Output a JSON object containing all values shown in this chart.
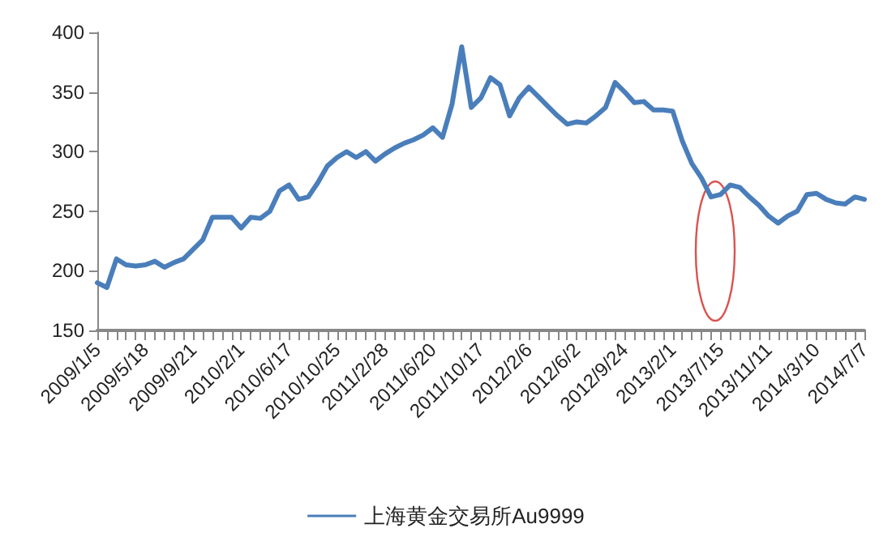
{
  "chart_data": {
    "type": "line",
    "categories": [
      "2009/1/5",
      null,
      null,
      null,
      null,
      "2009/5/18",
      null,
      null,
      null,
      null,
      "2009/9/21",
      null,
      null,
      null,
      null,
      "2010/2/1",
      null,
      null,
      null,
      null,
      "2010/6/17",
      null,
      null,
      null,
      null,
      "2010/10/25",
      null,
      null,
      null,
      null,
      "2011/2/28",
      null,
      null,
      null,
      null,
      "2011/6/20",
      null,
      null,
      null,
      null,
      "2011/10/17",
      null,
      null,
      null,
      null,
      "2012/2/6",
      null,
      null,
      null,
      null,
      "2012/6/2",
      null,
      null,
      null,
      null,
      "2012/9/24",
      null,
      null,
      null,
      null,
      "2013/2/1",
      null,
      null,
      null,
      null,
      "2013/7/15",
      null,
      null,
      null,
      null,
      "2013/11/11",
      null,
      null,
      null,
      null,
      "2014/3/10",
      null,
      null,
      null,
      null,
      "2014/7/7"
    ],
    "series": [
      {
        "name": "上海黄金交易所Au9999",
        "color": "#4a7ebb",
        "values": [
          190,
          186,
          210,
          205,
          204,
          205,
          208,
          203,
          207,
          210,
          218,
          226,
          245,
          245,
          245,
          236,
          245,
          244,
          250,
          267,
          272,
          260,
          262,
          274,
          288,
          295,
          300,
          295,
          300,
          292,
          298,
          303,
          307,
          310,
          314,
          320,
          312,
          340,
          388,
          337,
          345,
          362,
          356,
          330,
          345,
          354,
          346,
          338,
          330,
          323,
          325,
          324,
          330,
          337,
          358,
          350,
          341,
          342,
          335,
          335,
          334,
          309,
          290,
          278,
          262,
          264,
          272,
          270,
          262,
          255,
          246,
          240,
          246,
          250,
          264,
          265,
          260,
          257,
          256,
          262,
          260
        ]
      }
    ],
    "ylim": [
      150,
      400
    ],
    "yticks": [
      150,
      200,
      250,
      300,
      350,
      400
    ],
    "grid": false,
    "legend": "bottom",
    "marker": "none",
    "line_style": "solid"
  }
}
